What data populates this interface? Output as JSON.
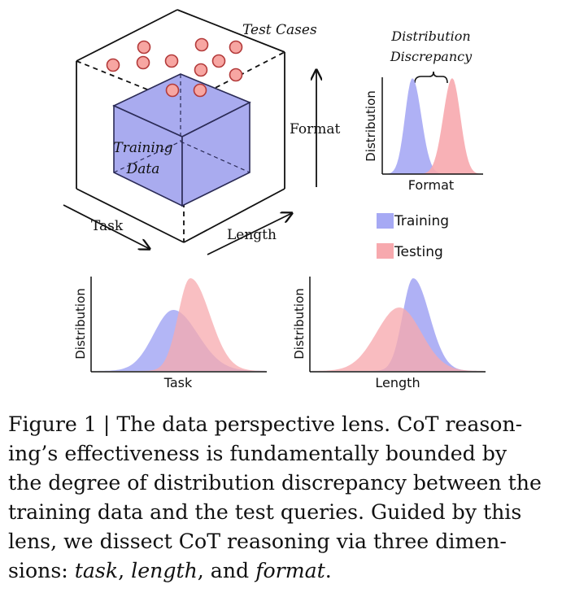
{
  "cube": {
    "test_cases_label": "Test Cases",
    "training_data_label_line1": "Training",
    "training_data_label_line2": "Data",
    "task_axis_label": "Task",
    "length_axis_label": "Length",
    "format_axis_label": "Format"
  },
  "discrepancy_plot": {
    "title_line1": "Distribution",
    "title_line2": "Discrepancy",
    "ylabel": "Distribution",
    "xlabel": "Format"
  },
  "legend": {
    "training_label": "Training",
    "testing_label": "Testing"
  },
  "task_plot": {
    "ylabel": "Distribution",
    "xlabel": "Task"
  },
  "length_plot": {
    "ylabel": "Distribution",
    "xlabel": "Length"
  },
  "colors": {
    "training": "#a6a9f4",
    "testing": "#f7a9ae",
    "cube_face": "#a9abef",
    "cube_edge": "#2b2b56",
    "test_case_fill": "#f7a6a2",
    "test_case_edge": "#b33a3a"
  },
  "caption": {
    "line1": "Figure 1 | The data perspective lens. CoT reason-",
    "line2": "ing’s effectiveness is fundamentally bounded by",
    "line3": "the degree of distribution discrepancy between the",
    "line4": "training data and the test queries. Guided by this",
    "line5": "lens, we dissect CoT reasoning via three dimen-",
    "line6_part1": "sions: ",
    "line6_task": "task",
    "line6_sep1": ", ",
    "line6_length": "length",
    "line6_sep2": ", and ",
    "line6_format": "format",
    "line6_end": "."
  }
}
